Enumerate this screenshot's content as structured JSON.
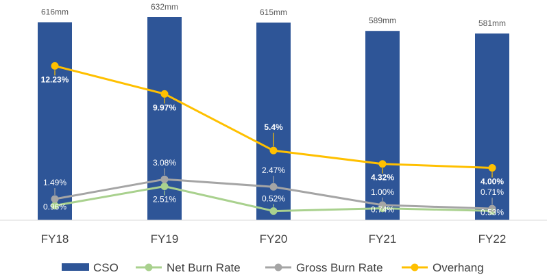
{
  "chart_data": {
    "type": "bar",
    "categories": [
      "FY18",
      "FY19",
      "FY20",
      "FY21",
      "FY22"
    ],
    "bar_series": {
      "name": "CSO",
      "values": [
        616,
        632,
        615,
        589,
        581
      ],
      "labels": [
        "616mm",
        "632mm",
        "615mm",
        "589mm",
        "581mm"
      ],
      "color": "#2E5597"
    },
    "line_series": [
      {
        "name": "Net Burn Rate",
        "values": [
          0.96,
          2.51,
          0.52,
          0.74,
          0.53
        ],
        "labels": [
          "0.96%",
          "2.51%",
          "0.52%",
          "0.74%",
          "0.53%"
        ],
        "color": "#A9D18E"
      },
      {
        "name": "Gross Burn Rate",
        "values": [
          1.49,
          3.08,
          2.47,
          1.0,
          0.71
        ],
        "labels": [
          "1.49%",
          "3.08%",
          "2.47%",
          "1.00%",
          "0.71%"
        ],
        "color": "#A5A5A5"
      },
      {
        "name": "Overhang",
        "values": [
          12.23,
          9.97,
          5.4,
          4.32,
          4.0
        ],
        "labels": [
          "12.23%",
          "9.97%",
          "5.4%",
          "4.32%",
          "4.00%"
        ],
        "color": "#FFC000"
      }
    ],
    "legend": {
      "position": "bottom",
      "items": [
        "CSO",
        "Net Burn Rate",
        "Gross Burn Rate",
        "Overhang"
      ]
    },
    "grid": false
  }
}
